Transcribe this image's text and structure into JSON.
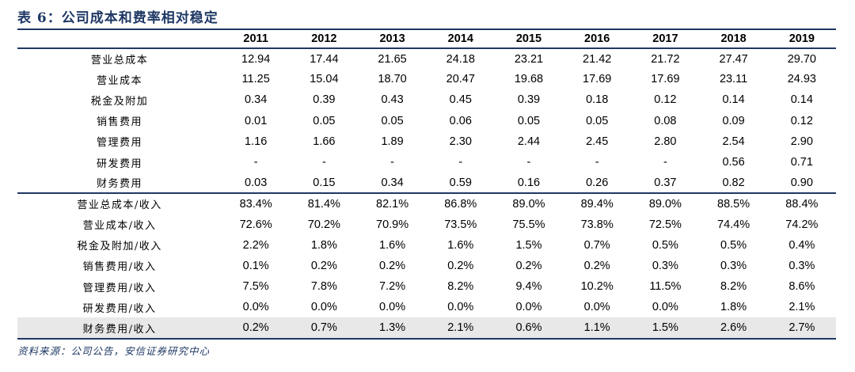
{
  "title": "表 6：公司成本和费率相对稳定",
  "source": "资料来源：公司公告，安信证券研究中心",
  "years": [
    "2011",
    "2012",
    "2013",
    "2014",
    "2015",
    "2016",
    "2017",
    "2018",
    "2019"
  ],
  "rows": [
    {
      "label": "营业总成本",
      "values": [
        "12.94",
        "17.44",
        "21.65",
        "24.18",
        "23.21",
        "21.42",
        "21.72",
        "27.47",
        "29.70"
      ]
    },
    {
      "label": "营业成本",
      "values": [
        "11.25",
        "15.04",
        "18.70",
        "20.47",
        "19.68",
        "17.69",
        "17.69",
        "23.11",
        "24.93"
      ]
    },
    {
      "label": "税金及附加",
      "values": [
        "0.34",
        "0.39",
        "0.43",
        "0.45",
        "0.39",
        "0.18",
        "0.12",
        "0.14",
        "0.14"
      ]
    },
    {
      "label": "销售费用",
      "values": [
        "0.01",
        "0.05",
        "0.05",
        "0.06",
        "0.05",
        "0.05",
        "0.08",
        "0.09",
        "0.12"
      ]
    },
    {
      "label": "管理费用",
      "values": [
        "1.16",
        "1.66",
        "1.89",
        "2.30",
        "2.44",
        "2.45",
        "2.80",
        "2.54",
        "2.90"
      ]
    },
    {
      "label": "研发费用",
      "values": [
        "-",
        "-",
        "-",
        "-",
        "-",
        "-",
        "-",
        "0.56",
        "0.71"
      ]
    },
    {
      "label": "财务费用",
      "values": [
        "0.03",
        "0.15",
        "0.34",
        "0.59",
        "0.16",
        "0.26",
        "0.37",
        "0.82",
        "0.90"
      ]
    },
    {
      "label": "营业总成本/收入",
      "values": [
        "83.4%",
        "81.4%",
        "82.1%",
        "86.8%",
        "89.0%",
        "89.4%",
        "89.0%",
        "88.5%",
        "88.4%"
      ]
    },
    {
      "label": "营业成本/收入",
      "values": [
        "72.6%",
        "70.2%",
        "70.9%",
        "73.5%",
        "75.5%",
        "73.8%",
        "72.5%",
        "74.4%",
        "74.2%"
      ]
    },
    {
      "label": "税金及附加/收入",
      "values": [
        "2.2%",
        "1.8%",
        "1.6%",
        "1.6%",
        "1.5%",
        "0.7%",
        "0.5%",
        "0.5%",
        "0.4%"
      ]
    },
    {
      "label": "销售费用/收入",
      "values": [
        "0.1%",
        "0.2%",
        "0.2%",
        "0.2%",
        "0.2%",
        "0.2%",
        "0.3%",
        "0.3%",
        "0.3%"
      ]
    },
    {
      "label": "管理费用/收入",
      "values": [
        "7.5%",
        "7.8%",
        "7.2%",
        "8.2%",
        "9.4%",
        "10.2%",
        "11.5%",
        "8.2%",
        "8.6%"
      ]
    },
    {
      "label": "研发费用/收入",
      "values": [
        "0.0%",
        "0.0%",
        "0.0%",
        "0.0%",
        "0.0%",
        "0.0%",
        "0.0%",
        "1.8%",
        "2.1%"
      ]
    },
    {
      "label": "财务费用/收入",
      "values": [
        "0.2%",
        "0.7%",
        "1.3%",
        "2.1%",
        "0.6%",
        "1.1%",
        "1.5%",
        "2.6%",
        "2.7%"
      ]
    }
  ]
}
